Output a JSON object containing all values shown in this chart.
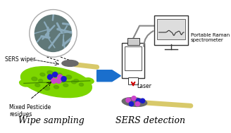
{
  "bg_color": "#ffffff",
  "title_left": "Wipe sampling",
  "title_right": "SERS detection",
  "label_sers_wiper": "SERS wiper",
  "label_pesticide": "Mixed Pesticide\nresidues",
  "label_portable": "Portable Raman\nspectrometer",
  "label_laser": "Laser",
  "arrow_color": "#1a6fcd",
  "leaf_green1": "#7dd600",
  "leaf_green2": "#5aaa00",
  "leaf_dark": "#3d8000",
  "swab_head_color": "#6a6a6a",
  "swab_stick_color": "#d8c96a",
  "dot_blue": "#1a1acc",
  "dot_pink": "#cc44cc",
  "laser_arrow_color": "#cc0000",
  "sem_bg": "#607878",
  "sem_fiber": "#8aaabb",
  "device_face": "#ffffff",
  "device_edge": "#333333",
  "screen_bg": "#dddddd",
  "wire_color": "#888888",
  "fig_width": 3.28,
  "fig_height": 1.89,
  "dpi": 100
}
